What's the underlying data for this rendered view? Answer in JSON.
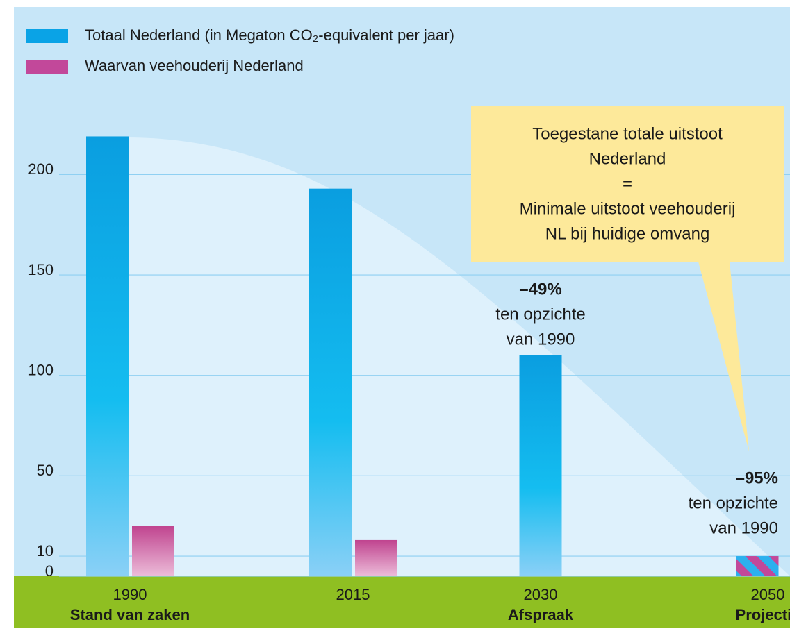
{
  "chart_data": {
    "type": "bar",
    "categories": [
      "1990",
      "2015",
      "2030",
      "2050"
    ],
    "category_notes": [
      "Stand van zaken",
      null,
      "Afspraak",
      "Projectie"
    ],
    "series": [
      {
        "name": "Totaal Nederland (in Megaton CO₂-equivalent per jaar)",
        "color": "#0aa3e6",
        "values": [
          219,
          193,
          110,
          10
        ]
      },
      {
        "name": "Waarvan veehouderij Nederland",
        "color": "#c2489a",
        "values": [
          25,
          18,
          null,
          10
        ]
      }
    ],
    "ylim": [
      0,
      280
    ],
    "yticks": [
      0,
      10,
      50,
      100,
      150,
      200
    ],
    "grid": true,
    "callout": [
      "Toegestane totale uitstoot",
      "Nederland",
      "=",
      "Minimale uitstoot veehouderij",
      "NL bij huidige omvang"
    ],
    "annotations": [
      {
        "lines": [
          "–49%",
          "ten opzichte",
          "van 1990"
        ]
      },
      {
        "lines": [
          "–95%",
          "ten opzichte",
          "van 1990"
        ]
      }
    ]
  }
}
